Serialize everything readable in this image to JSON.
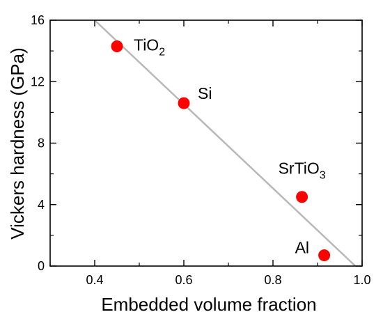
{
  "chart_data": {
    "type": "scatter",
    "xlabel": "Embedded volume fraction",
    "ylabel": "Vickers hardness (GPa)",
    "xlim": [
      0.3,
      1.0
    ],
    "ylim": [
      0,
      16
    ],
    "x_ticks": [
      "0.4",
      "0.6",
      "0.8",
      "1.0"
    ],
    "y_ticks": [
      "0",
      "4",
      "8",
      "12",
      "16"
    ],
    "points": [
      {
        "label_main": "TiO",
        "label_sub": "2",
        "x": 0.45,
        "y": 14.3
      },
      {
        "label_main": "Si",
        "label_sub": "",
        "x": 0.6,
        "y": 10.6
      },
      {
        "label_main": "SrTiO",
        "label_sub": "3",
        "x": 0.865,
        "y": 4.5
      },
      {
        "label_main": "Al",
        "label_sub": "",
        "x": 0.915,
        "y": 0.7
      }
    ],
    "fit_line": {
      "x": [
        0.4,
        0.985
      ],
      "y": [
        16.0,
        0.0
      ]
    },
    "grid": false,
    "colors": {
      "points": "#ff0000",
      "fit_line": "#b8b8b8",
      "axes": "#000000"
    }
  }
}
